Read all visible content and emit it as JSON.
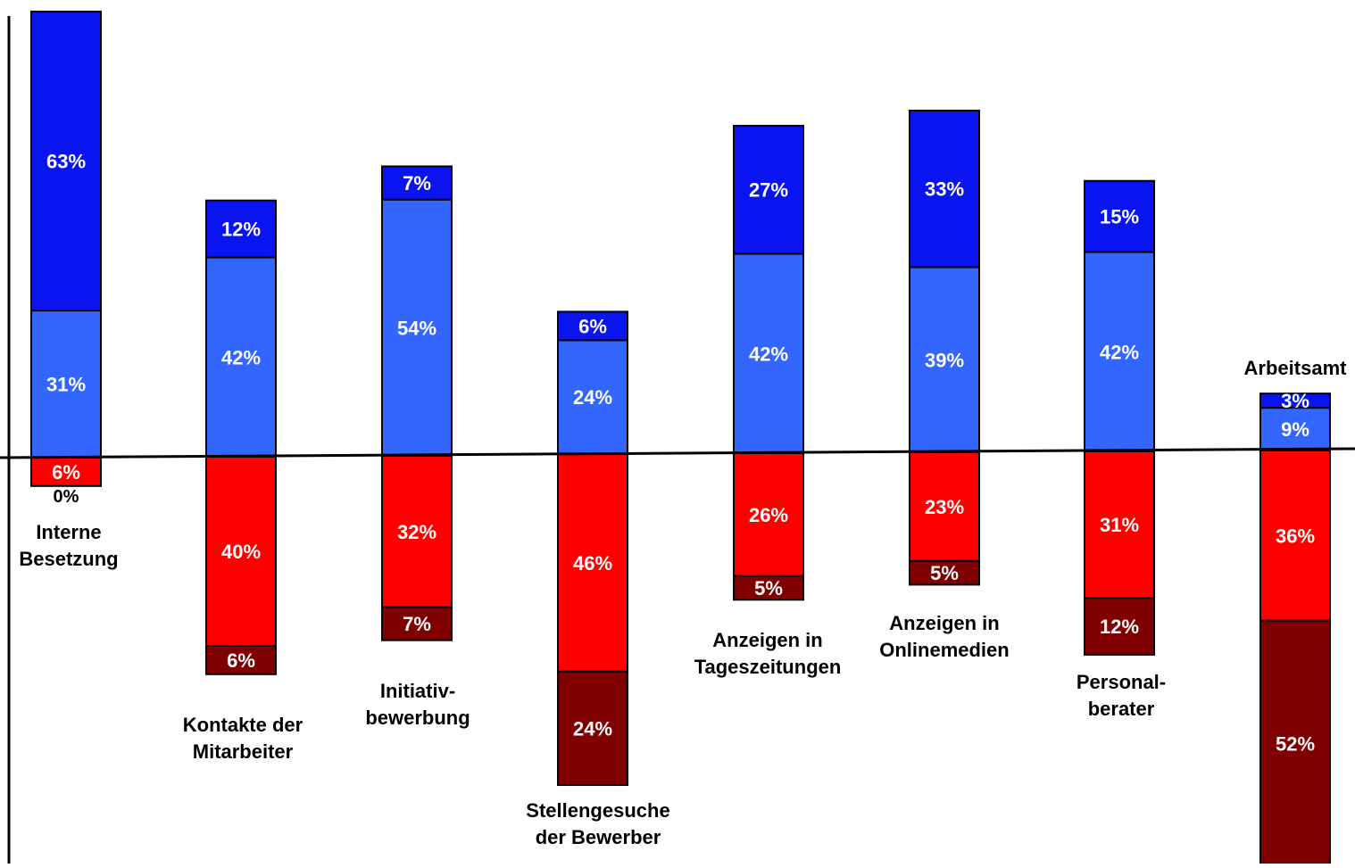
{
  "chart_data": {
    "type": "bar",
    "stacked": true,
    "diverging": true,
    "categories": [
      {
        "label_lines": [
          "Interne",
          "Besetzung"
        ]
      },
      {
        "label_lines": [
          "Kontakte der",
          "Mitarbeiter"
        ]
      },
      {
        "label_lines": [
          "Initiativ-",
          "bewerbung"
        ]
      },
      {
        "label_lines": [
          "Stellengesuche",
          "der Bewerber"
        ]
      },
      {
        "label_lines": [
          "Anzeigen in",
          "Tageszeitungen"
        ]
      },
      {
        "label_lines": [
          "Anzeigen in",
          "Onlinemedien"
        ]
      },
      {
        "label_lines": [
          "Personal-",
          "berater"
        ]
      },
      {
        "label_lines": [
          "Arbeitsamt"
        ]
      }
    ],
    "series": [
      {
        "direction": "up",
        "color": "#3366ff",
        "values": [
          31,
          42,
          54,
          24,
          42,
          39,
          42,
          9
        ],
        "labels": [
          "31%",
          "42%",
          "54%",
          "24%",
          "42%",
          "39%",
          "42%",
          "9%"
        ]
      },
      {
        "direction": "up",
        "color": "#0a14f0",
        "values": [
          63,
          12,
          7,
          6,
          27,
          33,
          15,
          3
        ],
        "labels": [
          "63%",
          "12%",
          "7%",
          "6%",
          "27%",
          "33%",
          "15%",
          "3%"
        ]
      },
      {
        "direction": "down",
        "color": "#ff0000",
        "values": [
          6,
          40,
          32,
          46,
          26,
          23,
          31,
          36
        ],
        "labels": [
          "6%",
          "40%",
          "32%",
          "46%",
          "26%",
          "23%",
          "31%",
          "36%"
        ]
      },
      {
        "direction": "down",
        "color": "#800000",
        "values": [
          0,
          6,
          7,
          24,
          5,
          5,
          12,
          52
        ],
        "labels": [
          "0%",
          "6%",
          "7%",
          "24%",
          "5%",
          "5%",
          "12%",
          "52%"
        ]
      }
    ],
    "legend": "none",
    "grid": false
  }
}
